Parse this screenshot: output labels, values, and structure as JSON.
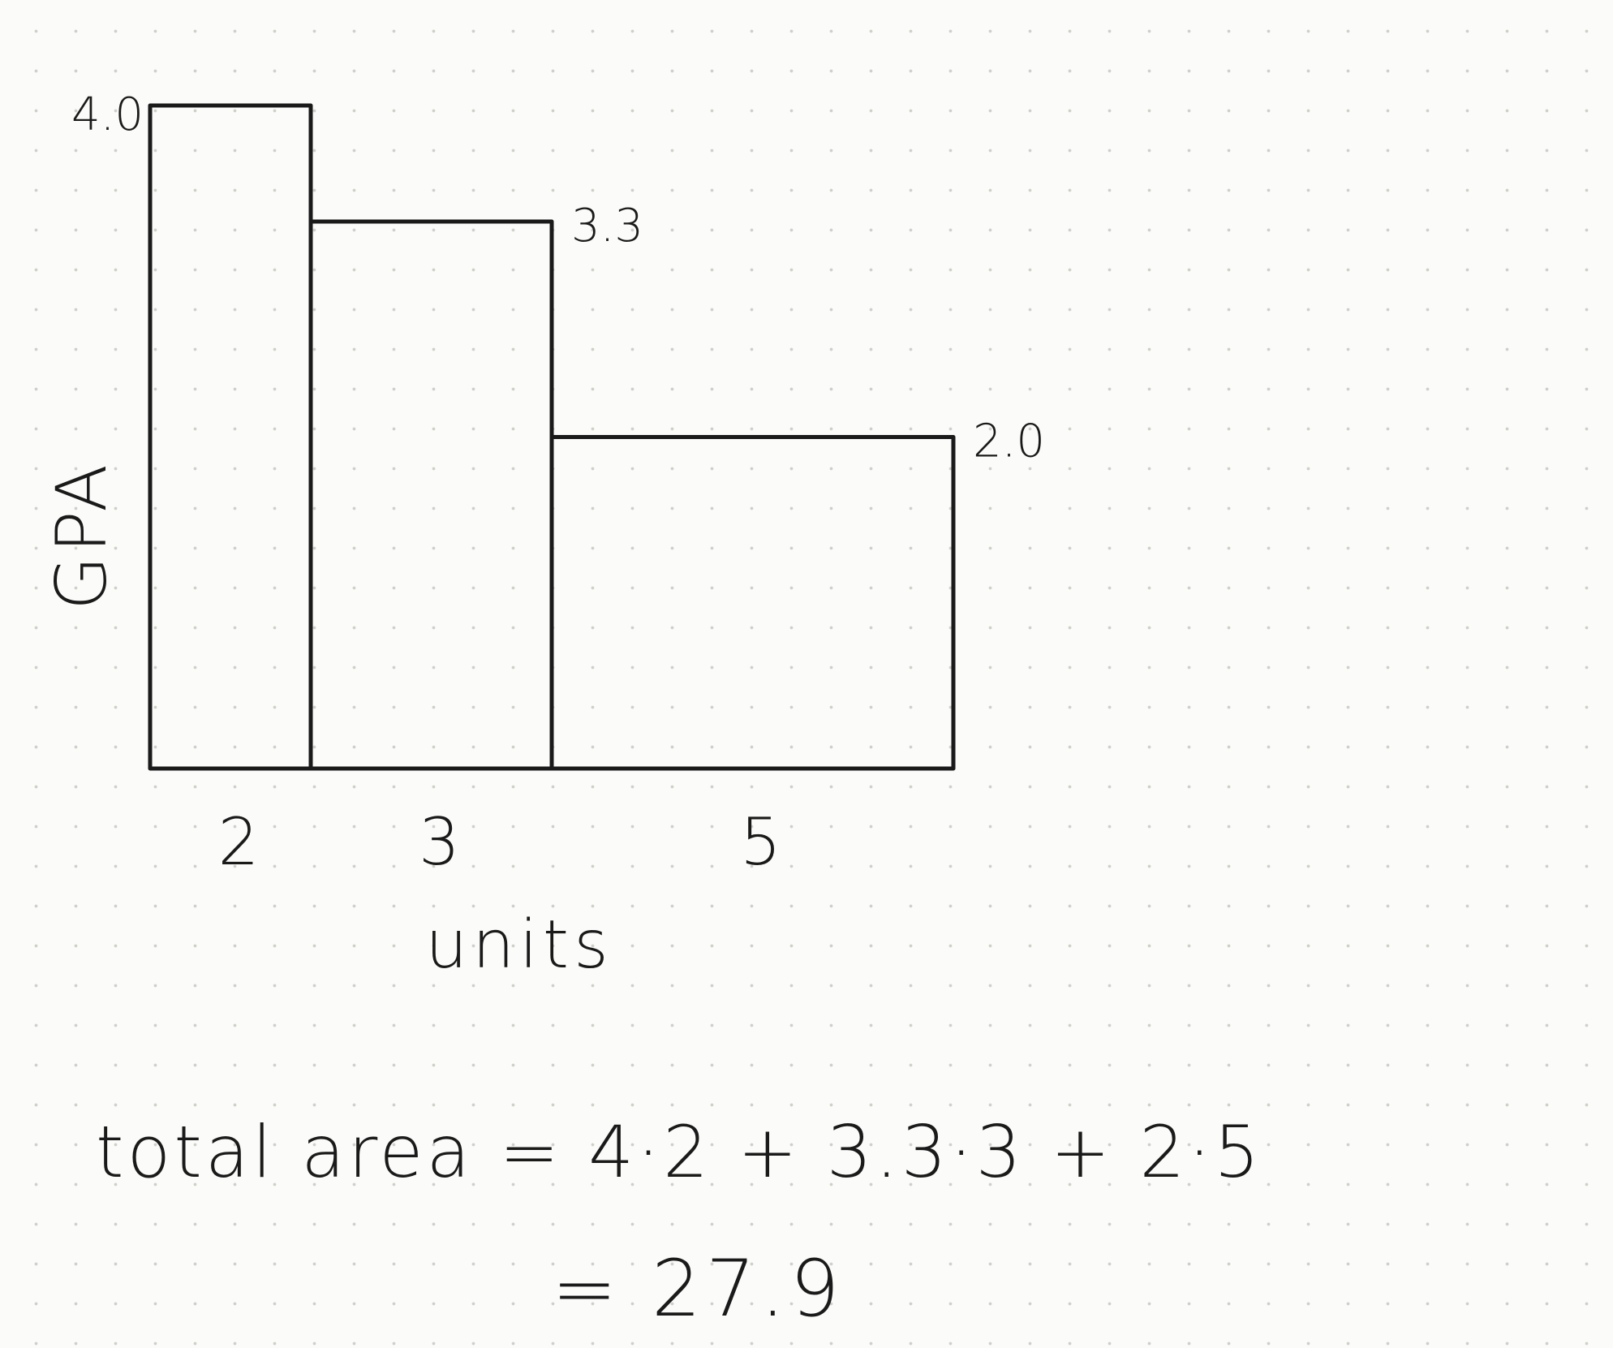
{
  "chart_data": {
    "type": "bar",
    "variable_width": true,
    "categories": [
      "2",
      "3",
      "5"
    ],
    "widths": [
      2,
      3,
      5
    ],
    "values": [
      4.0,
      3.3,
      2.0
    ],
    "value_labels": [
      "4.0",
      "3.3",
      "2.0"
    ],
    "title": "",
    "xlabel": "units",
    "ylabel": "GPA",
    "xlim": [
      0,
      10
    ],
    "ylim": [
      0,
      4.0
    ],
    "grid": false,
    "legend": "none"
  },
  "formula": {
    "line1": "total area = 4·2 + 3.3·3 + 2·5",
    "line2": "= 27.9"
  },
  "colors": {
    "ink": "#1a1a1a",
    "paper": "#fbfbf9",
    "dot_grid": "#cfcfca"
  }
}
